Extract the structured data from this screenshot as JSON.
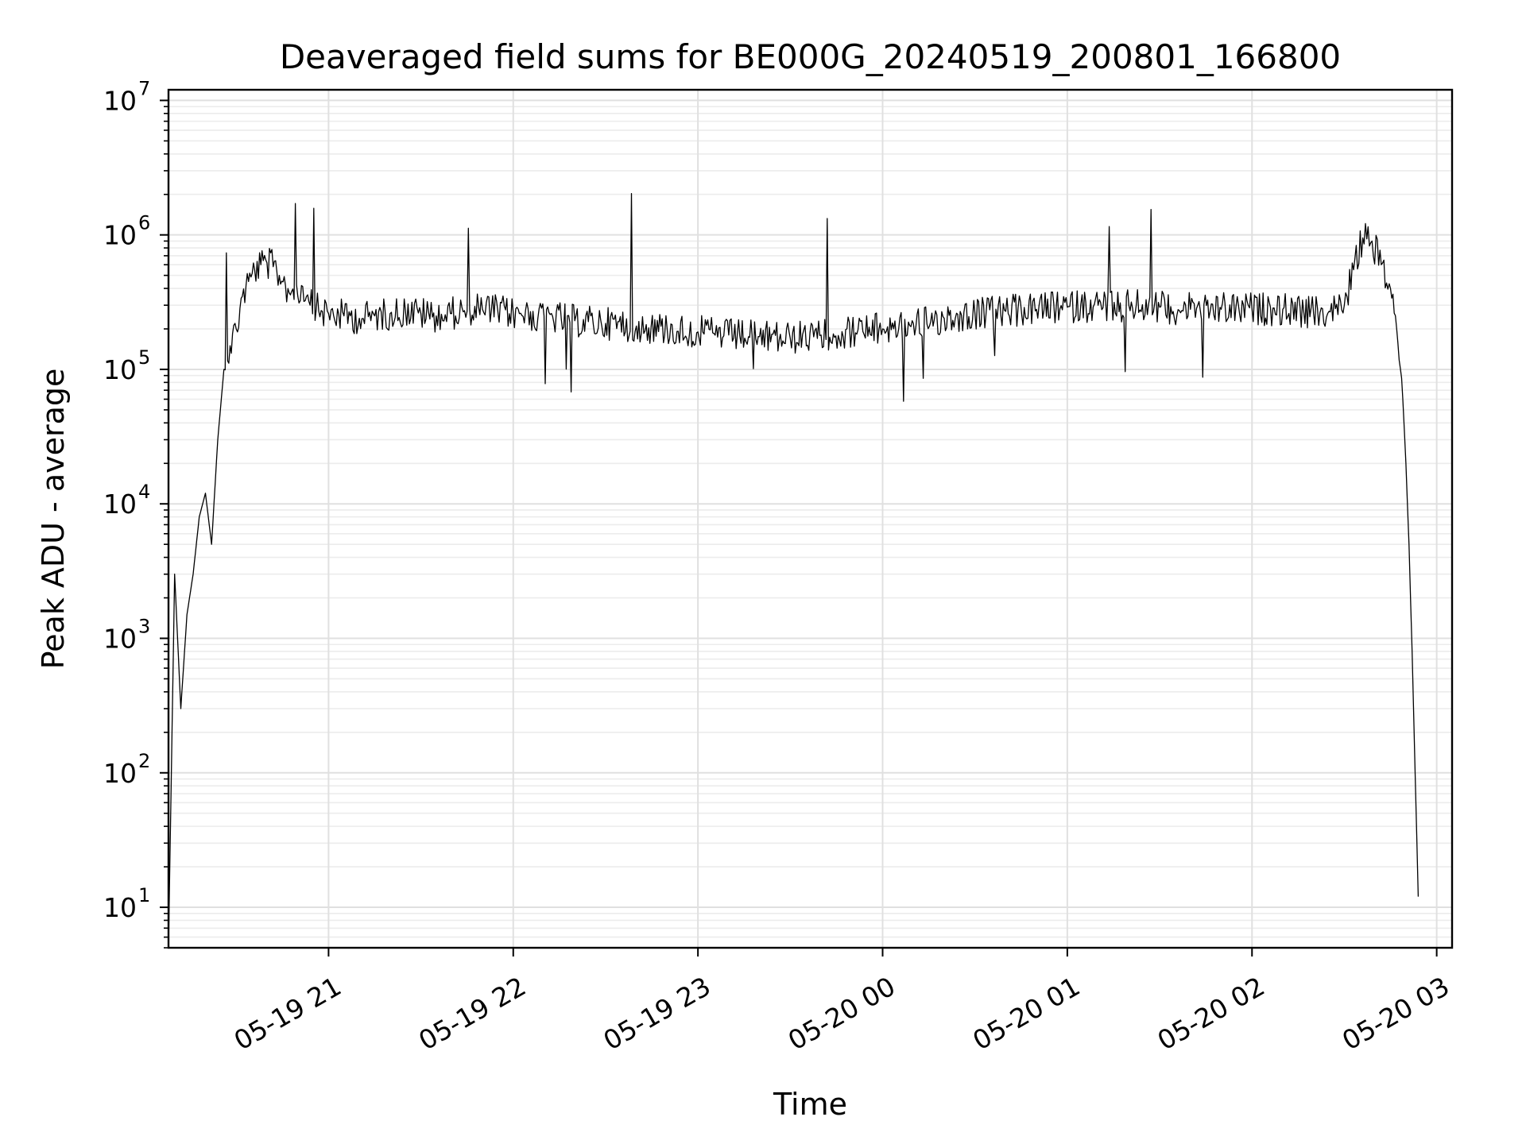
{
  "chart_data": {
    "type": "line",
    "title": "Deaveraged field sums for BE000G_20240519_200801_166800",
    "xlabel": "Time",
    "ylabel": "Peak ADU - average",
    "yscale": "log",
    "ylim": [
      5,
      12000000
    ],
    "xlim": [
      "2024-05-19 20:08",
      "2024-05-20 03:05"
    ],
    "grid": true,
    "line_color": "#000000",
    "x_ticks": [
      {
        "value": "2024-05-19 21:00",
        "label": "05-19 21"
      },
      {
        "value": "2024-05-19 22:00",
        "label": "05-19 22"
      },
      {
        "value": "2024-05-19 23:00",
        "label": "05-19 23"
      },
      {
        "value": "2024-05-20 00:00",
        "label": "05-20 00"
      },
      {
        "value": "2024-05-20 01:00",
        "label": "05-20 01"
      },
      {
        "value": "2024-05-20 02:00",
        "label": "05-20 02"
      },
      {
        "value": "2024-05-20 03:00",
        "label": "05-20 03"
      }
    ],
    "y_ticks": [
      {
        "value": 10,
        "base": "10",
        "exp": "1"
      },
      {
        "value": 100,
        "base": "10",
        "exp": "2"
      },
      {
        "value": 1000,
        "base": "10",
        "exp": "3"
      },
      {
        "value": 10000,
        "base": "10",
        "exp": "4"
      },
      {
        "value": 100000,
        "base": "10",
        "exp": "5"
      },
      {
        "value": 1000000,
        "base": "10",
        "exp": "6"
      },
      {
        "value": 10000000,
        "base": "10",
        "exp": "7"
      }
    ],
    "series": [
      {
        "x": [
          "2024-05-19 20:08",
          "2024-05-19 20:10",
          "2024-05-19 20:12",
          "2024-05-19 20:14",
          "2024-05-19 20:16",
          "2024-05-19 20:18",
          "2024-05-19 20:20",
          "2024-05-19 20:22",
          "2024-05-19 20:24",
          "2024-05-19 20:26",
          "2024-05-19 20:28",
          "2024-05-19 20:30",
          "2024-05-19 20:32",
          "2024-05-19 20:34",
          "2024-05-19 20:36",
          "2024-05-19 20:38",
          "2024-05-19 20:40",
          "2024-05-19 20:42",
          "2024-05-19 20:44",
          "2024-05-19 20:46",
          "2024-05-19 20:48",
          "2024-05-19 20:50",
          "2024-05-19 20:52",
          "2024-05-19 20:54",
          "2024-05-19 20:56",
          "2024-05-19 20:58",
          "2024-05-19 21:00",
          "2024-05-19 21:05",
          "2024-05-19 21:10",
          "2024-05-19 21:15",
          "2024-05-19 21:20",
          "2024-05-19 21:25",
          "2024-05-19 21:30",
          "2024-05-19 21:35",
          "2024-05-19 21:40",
          "2024-05-19 21:45",
          "2024-05-19 21:50",
          "2024-05-19 21:55",
          "2024-05-19 22:00",
          "2024-05-19 22:10",
          "2024-05-19 22:20",
          "2024-05-19 22:30",
          "2024-05-19 22:40",
          "2024-05-19 22:50",
          "2024-05-19 23:00",
          "2024-05-19 23:10",
          "2024-05-19 23:20",
          "2024-05-19 23:30",
          "2024-05-19 23:40",
          "2024-05-19 23:50",
          "2024-05-20 00:00",
          "2024-05-20 00:10",
          "2024-05-20 00:20",
          "2024-05-20 00:30",
          "2024-05-20 00:40",
          "2024-05-20 00:50",
          "2024-05-20 01:00",
          "2024-05-20 01:10",
          "2024-05-20 01:20",
          "2024-05-20 01:30",
          "2024-05-20 01:40",
          "2024-05-20 01:50",
          "2024-05-20 02:00",
          "2024-05-20 02:10",
          "2024-05-20 02:20",
          "2024-05-20 02:25",
          "2024-05-20 02:30",
          "2024-05-20 02:33",
          "2024-05-20 02:36",
          "2024-05-20 02:39",
          "2024-05-20 02:42",
          "2024-05-20 02:45",
          "2024-05-20 02:47",
          "2024-05-20 02:49",
          "2024-05-20 02:50",
          "2024-05-20 02:51",
          "2024-05-20 02:52",
          "2024-05-20 02:53",
          "2024-05-20 02:54"
        ],
        "y": [
          5,
          3000,
          300,
          1500,
          3000,
          8000,
          12000,
          5000,
          30000,
          100000,
          150000,
          200000,
          350000,
          450000,
          550000,
          600000,
          620000,
          580000,
          500000,
          420000,
          380000,
          350000,
          320000,
          300000,
          280000,
          270000,
          260000,
          250000,
          240000,
          250000,
          260000,
          270000,
          260000,
          250000,
          260000,
          270000,
          280000,
          270000,
          260000,
          250000,
          230000,
          220000,
          210000,
          200000,
          190000,
          180000,
          175000,
          170000,
          180000,
          190000,
          200000,
          220000,
          240000,
          260000,
          270000,
          280000,
          290000,
          300000,
          300000,
          290000,
          280000,
          280000,
          280000,
          280000,
          260000,
          270000,
          300000,
          550000,
          950000,
          900000,
          600000,
          400000,
          200000,
          60000,
          20000,
          5000,
          800,
          100,
          12
        ]
      }
    ],
    "annotations": []
  }
}
